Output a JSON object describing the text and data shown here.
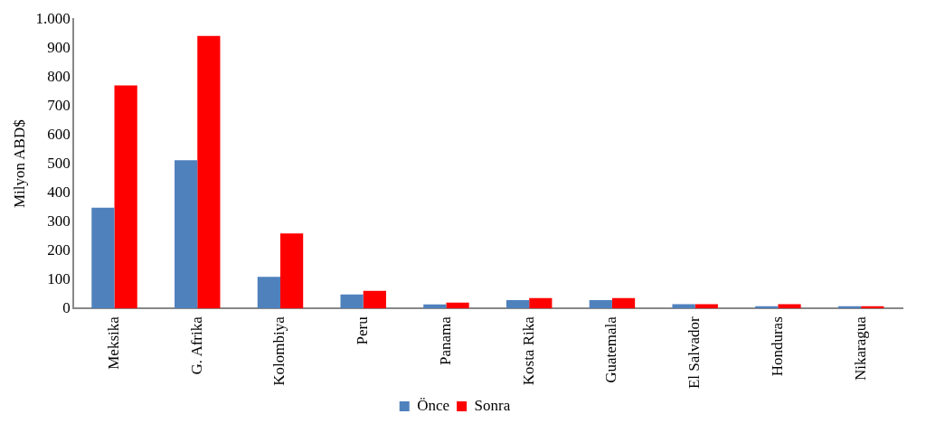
{
  "chart_data": {
    "type": "bar",
    "ylabel": "Milyon ABD$",
    "categories": [
      "Meksika",
      "G. Afrika",
      "Kolombiya",
      "Peru",
      "Panama",
      "Kosta Rika",
      "Guatemala",
      "El Salvador",
      "Honduras",
      "Nikaragua"
    ],
    "series": [
      {
        "name": "Önce",
        "color": "#4f81bd",
        "values": [
          348,
          512,
          109,
          48,
          14,
          29,
          29,
          15,
          8,
          8
        ]
      },
      {
        "name": "Sonra",
        "color": "#ff0000",
        "values": [
          771,
          942,
          259,
          61,
          20,
          36,
          36,
          15,
          15,
          8
        ]
      }
    ],
    "ylim": [
      0,
      1000
    ],
    "yticks": [
      0,
      100,
      200,
      300,
      400,
      500,
      600,
      700,
      800,
      900,
      {
        "value": 1000,
        "label": "1.000"
      }
    ],
    "grid": false,
    "legend": "bottom"
  }
}
